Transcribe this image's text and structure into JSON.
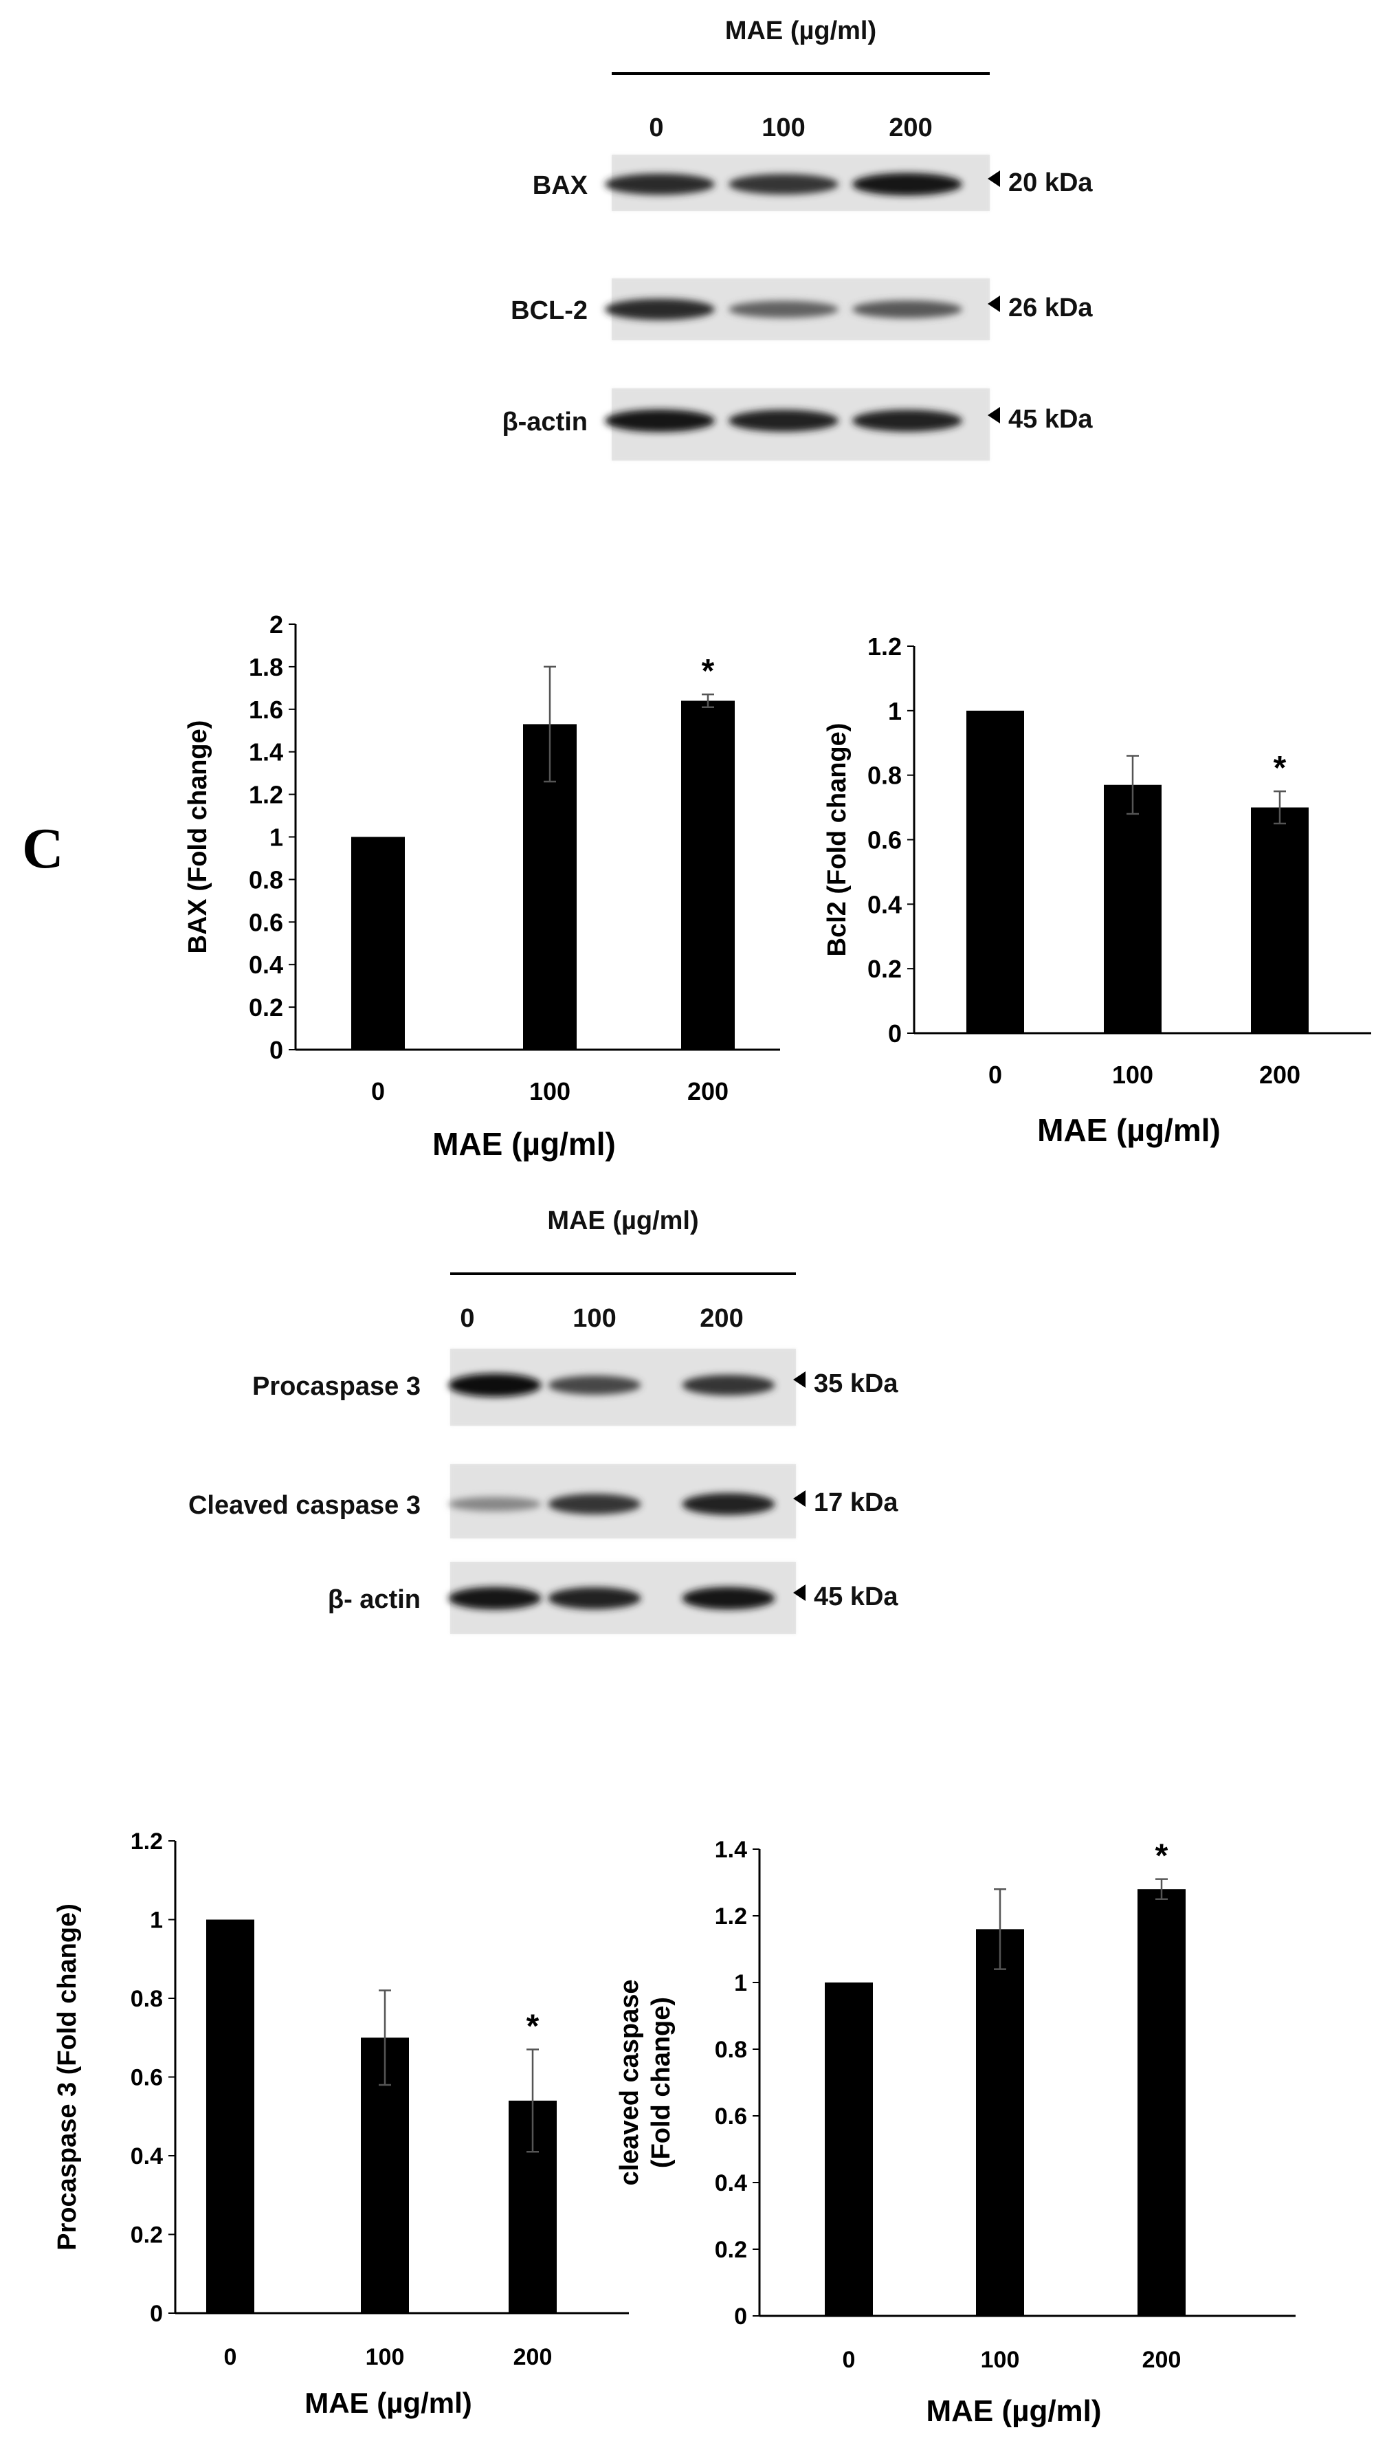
{
  "panel_label": "C",
  "blots": [
    {
      "header": "MAE (µg/ml)",
      "lanes": [
        "0",
        "100",
        "200"
      ],
      "rows": [
        {
          "protein": "BAX",
          "size": "20 kDa",
          "intensity": [
            0.85,
            0.8,
            0.95
          ]
        },
        {
          "protein": "BCL-2",
          "size": "26 kDa",
          "intensity": [
            0.85,
            0.55,
            0.6
          ]
        },
        {
          "protein": "β-actin",
          "size": "45 kDa",
          "intensity": [
            0.95,
            0.9,
            0.9
          ]
        }
      ]
    },
    {
      "header": "MAE (µg/ml)",
      "lanes": [
        "0",
        "100",
        "200"
      ],
      "rows": [
        {
          "protein": "Procaspase 3",
          "size": "35 kDa",
          "intensity": [
            1.0,
            0.7,
            0.8
          ]
        },
        {
          "protein": "Cleaved caspase 3",
          "size": "17 kDa",
          "intensity": [
            0.35,
            0.8,
            0.9
          ]
        },
        {
          "protein": "β- actin",
          "size": "45 kDa",
          "intensity": [
            0.95,
            0.9,
            0.95
          ]
        }
      ]
    }
  ],
  "chart_data": [
    {
      "type": "bar",
      "categories": [
        "0",
        "100",
        "200"
      ],
      "values": [
        1.0,
        1.53,
        1.64
      ],
      "errors": [
        0,
        0.27,
        0.03
      ],
      "significance": [
        "",
        "",
        "*"
      ],
      "xlabel": "MAE (µg/ml)",
      "ylabel": "BAX (Fold change)",
      "ylim": [
        0,
        2
      ],
      "yticks": [
        "0",
        "0.2",
        "0.4",
        "0.6",
        "0.8",
        "1",
        "1.2",
        "1.4",
        "1.6",
        "1.8",
        "2"
      ],
      "grid": false,
      "bar_color": "#000000"
    },
    {
      "type": "bar",
      "categories": [
        "0",
        "100",
        "200"
      ],
      "values": [
        1.0,
        0.77,
        0.7
      ],
      "errors": [
        0,
        0.09,
        0.05
      ],
      "significance": [
        "",
        "",
        "*"
      ],
      "xlabel": "MAE (µg/ml)",
      "ylabel": "Bcl2  (Fold change)",
      "ylim": [
        0,
        1.2
      ],
      "yticks": [
        "0",
        "0.2",
        "0.4",
        "0.6",
        "0.8",
        "1",
        "1.2"
      ],
      "grid": false,
      "bar_color": "#000000"
    },
    {
      "type": "bar",
      "categories": [
        "0",
        "100",
        "200"
      ],
      "values": [
        1.0,
        0.7,
        0.54
      ],
      "errors": [
        0,
        0.12,
        0.13
      ],
      "significance": [
        "",
        "",
        "*"
      ],
      "xlabel": "MAE (µg/ml)",
      "ylabel": "Procaspase 3  (Fold change)",
      "ylim": [
        0,
        1.2
      ],
      "yticks": [
        "0",
        "0.2",
        "0.4",
        "0.6",
        "0.8",
        "1",
        "1.2"
      ],
      "grid": false,
      "bar_color": "#000000"
    },
    {
      "type": "bar",
      "categories": [
        "0",
        "100",
        "200"
      ],
      "values": [
        1.0,
        1.16,
        1.28
      ],
      "errors": [
        0,
        0.12,
        0.03
      ],
      "significance": [
        "",
        "",
        "*"
      ],
      "xlabel": "MAE (µg/ml)",
      "ylabel_lines": [
        "cleaved caspase",
        "(Fold change)"
      ],
      "ylim": [
        0,
        1.4
      ],
      "yticks": [
        "0",
        "0.2",
        "0.4",
        "0.6",
        "0.8",
        "1",
        "1.2",
        "1.4"
      ],
      "grid": false,
      "bar_color": "#000000"
    }
  ]
}
